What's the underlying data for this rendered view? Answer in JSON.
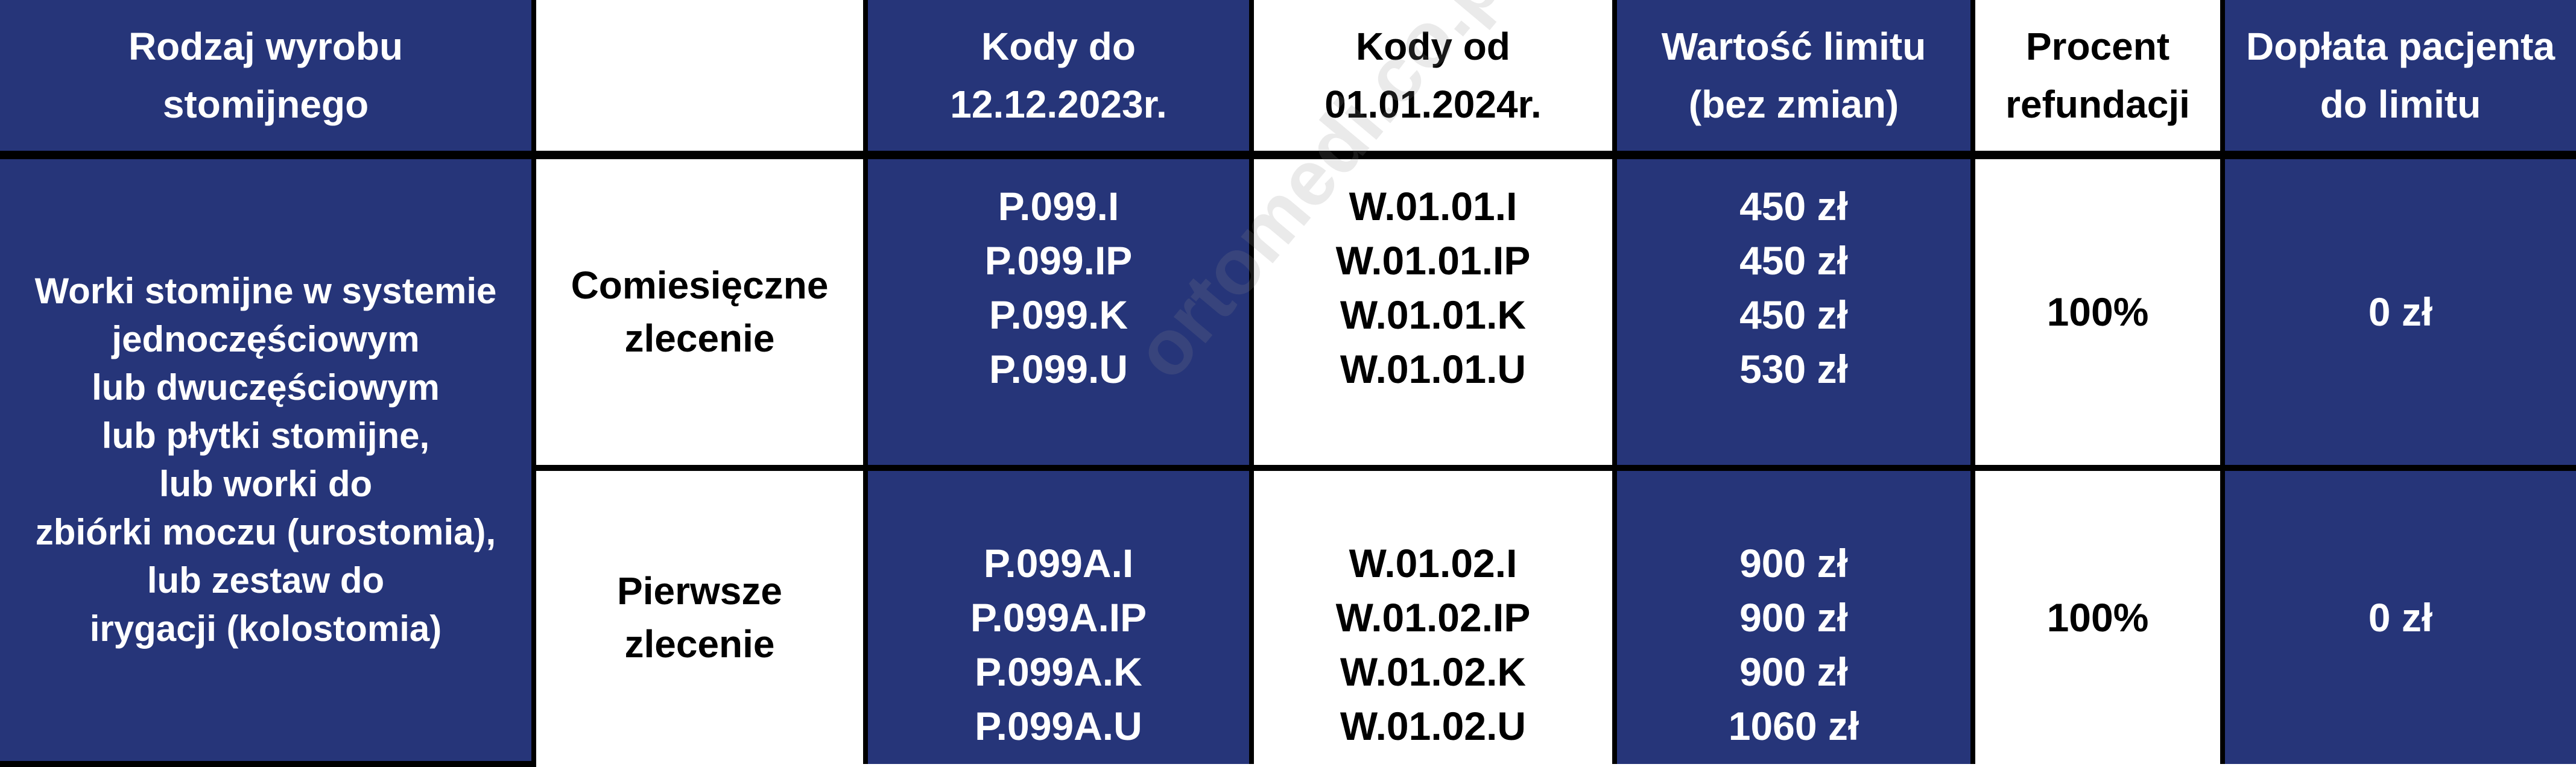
{
  "header": {
    "kind": [
      "Rodzaj wyrobu",
      "stomijnego"
    ],
    "empty": "",
    "codes_old": [
      "Kody do",
      "12.12.2023r."
    ],
    "codes_new": [
      "Kody od",
      "01.01.2024r."
    ],
    "limit": [
      "Wartość limitu",
      "(bez zmian)"
    ],
    "percent": [
      "Procent",
      "refundacji"
    ],
    "copay": [
      "Dopłata pacjenta",
      "do limitu"
    ]
  },
  "product_kind": [
    "Worki stomijne w systemie",
    "jednoczęściowym",
    "lub dwuczęściowym",
    "lub płytki stomijne,",
    "lub worki do",
    "zbiórki moczu (urostomia),",
    "lub zestaw do",
    "irygacji (kolostomia)"
  ],
  "rows": [
    {
      "order": [
        "Comiesięczne",
        "zlecenie"
      ],
      "codes_old": [
        "P.099.I",
        "P.099.IP",
        "P.099.K",
        "P.099.U"
      ],
      "codes_new": [
        "W.01.01.I",
        "W.01.01.IP",
        "W.01.01.K",
        "W.01.01.U"
      ],
      "limits": [
        "450 zł",
        "450 zł",
        "450 zł",
        "530 zł"
      ],
      "percent": "100%",
      "copay": "0 zł"
    },
    {
      "order": [
        "Pierwsze",
        "zlecenie"
      ],
      "codes_old": [
        "P.099A.I",
        "P.099A.IP",
        "P.099A.K",
        "P.099A.U"
      ],
      "codes_new": [
        "W.01.02.I",
        "W.01.02.IP",
        "W.01.02.K",
        "W.01.02.U"
      ],
      "limits": [
        "900 zł",
        "900 zł",
        "900 zł",
        "1060 zł"
      ],
      "percent": "100%",
      "copay": "0 zł"
    }
  ],
  "watermark": "ortomedi.co.pl",
  "colors": {
    "blue": "#263579",
    "white": "#ffffff",
    "border": "#000000"
  }
}
